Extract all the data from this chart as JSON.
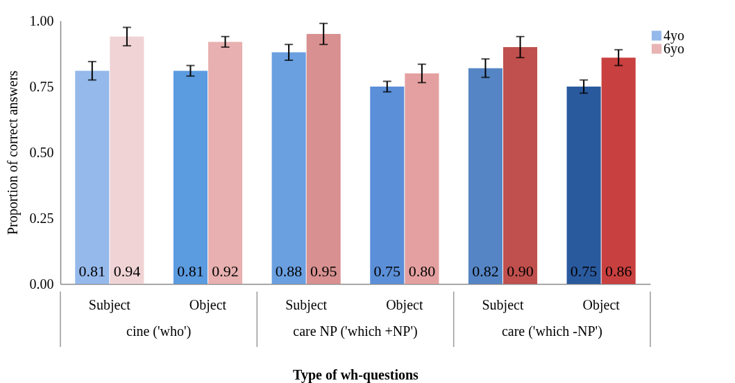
{
  "chart_data": {
    "type": "bar",
    "xlabel": "Type of wh-questions",
    "ylabel": "Proportion of correct answers",
    "categories": [
      "Subject",
      "Object",
      "Subject",
      "Object",
      "Subject",
      "Object"
    ],
    "annotations": [
      "cine ('who')",
      "care NP  ('which +NP')",
      "care  ('which -NP')"
    ],
    "series": [
      {
        "name": "4yo",
        "color": "#95b9eb",
        "colors": [
          "#95b9eb",
          "#5b9be0",
          "#6a9fe0",
          "#5b8fd8",
          "#5585c5",
          "#2a5a9e"
        ],
        "values": [
          0.81,
          0.81,
          0.88,
          0.75,
          0.82,
          0.75
        ],
        "value_labels": [
          "0.81",
          "0.81",
          "0.88",
          "0.75",
          "0.82",
          "0.75"
        ],
        "errors": [
          0.035,
          0.02,
          0.03,
          0.02,
          0.035,
          0.025
        ]
      },
      {
        "name": "6yo",
        "color": "#e8b4b4",
        "colors": [
          "#f0d3d5",
          "#e8b0b0",
          "#d89090",
          "#e4a0a0",
          "#c0504d",
          "#c8403f"
        ],
        "values": [
          0.94,
          0.92,
          0.95,
          0.8,
          0.9,
          0.86
        ],
        "value_labels": [
          "0.94",
          "0.92",
          "0.95",
          "0.80",
          "0.90",
          "0.86"
        ],
        "errors": [
          0.035,
          0.02,
          0.04,
          0.035,
          0.04,
          0.03
        ]
      }
    ],
    "ylim": [
      0,
      1
    ],
    "yticks": [
      {
        "value": 0,
        "label": "0.00"
      },
      {
        "value": 0.25,
        "label": "0.25"
      },
      {
        "value": 0.5,
        "label": "0.50"
      },
      {
        "value": 0.75,
        "label": "0.75"
      },
      {
        "value": 1,
        "label": "1.00"
      }
    ],
    "grid": false,
    "legend": "top right"
  }
}
